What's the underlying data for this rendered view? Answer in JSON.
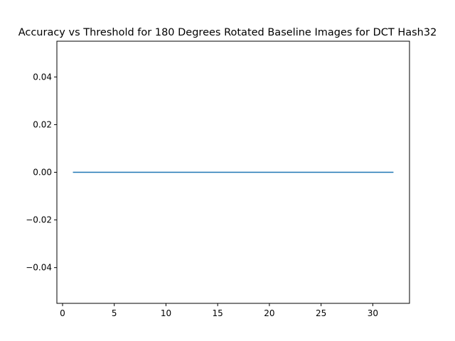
{
  "chart_data": {
    "type": "line",
    "title": "Accuracy vs Threshold for 180 Degrees Rotated Baseline Images for DCT Hash32",
    "xlabel": "",
    "ylabel": "",
    "xlim": [
      -0.55,
      33.55
    ],
    "ylim": [
      -0.055,
      0.055
    ],
    "xticks": [
      0,
      5,
      10,
      15,
      20,
      25,
      30
    ],
    "yticks": [
      0.04,
      0.02,
      0.0,
      -0.02,
      -0.04
    ],
    "yticklabels": [
      "0.04",
      "0.02",
      "0.00",
      "−0.02",
      "−0.04"
    ],
    "grid": false,
    "series": [
      {
        "color": "#1f77b4",
        "x": [
          1,
          32
        ],
        "y": [
          0.0,
          0.0
        ]
      }
    ]
  }
}
